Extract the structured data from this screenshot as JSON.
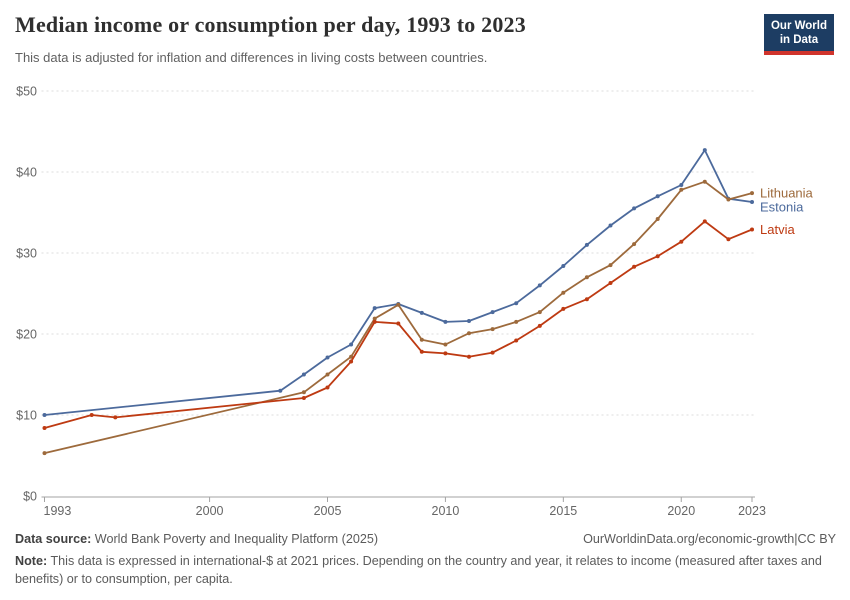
{
  "header": {
    "title": "Median income or consumption per day, 1993 to 2023",
    "subtitle": "This data is adjusted for inflation and differences in living costs between countries."
  },
  "logo": {
    "line1": "Our World",
    "line2": "in Data",
    "background_color": "#1d3d63",
    "accent_color": "#d0342c"
  },
  "chart_data": {
    "type": "line",
    "title": "Median income or consumption per day, 1993 to 2023",
    "xlabel": "",
    "ylabel": "",
    "xlim": [
      1993,
      2023
    ],
    "ylim": [
      0,
      50
    ],
    "grid": "horizontal-dashed",
    "legend_position": "end-of-line-labels",
    "x_ticks": [
      1993,
      2000,
      2005,
      2010,
      2015,
      2020,
      2023
    ],
    "x_tick_labels": [
      "1993",
      "2000",
      "2005",
      "2010",
      "2015",
      "2020",
      "2023"
    ],
    "y_ticks": [
      0,
      10,
      20,
      30,
      40,
      50
    ],
    "y_tick_labels": [
      "$0",
      "$10",
      "$20",
      "$30",
      "$40",
      "$50"
    ],
    "series": [
      {
        "name": "Estonia",
        "color": "#4C6A9C",
        "points": [
          [
            1993,
            10.0
          ],
          [
            2003,
            13.0
          ],
          [
            2004,
            15.0
          ],
          [
            2005,
            17.1
          ],
          [
            2006,
            18.7
          ],
          [
            2007,
            23.2
          ],
          [
            2008,
            23.7
          ],
          [
            2009,
            22.6
          ],
          [
            2010,
            21.5
          ],
          [
            2011,
            21.6
          ],
          [
            2012,
            22.7
          ],
          [
            2013,
            23.8
          ],
          [
            2014,
            26.0
          ],
          [
            2015,
            28.4
          ],
          [
            2016,
            31.0
          ],
          [
            2017,
            33.4
          ],
          [
            2018,
            35.5
          ],
          [
            2019,
            37.0
          ],
          [
            2020,
            38.4
          ],
          [
            2021,
            42.7
          ],
          [
            2022,
            36.7
          ],
          [
            2023,
            36.3
          ]
        ]
      },
      {
        "name": "Lithuania",
        "color": "#9D6A3C",
        "points": [
          [
            1993,
            5.3
          ],
          [
            2004,
            12.8
          ],
          [
            2005,
            15.0
          ],
          [
            2006,
            17.2
          ],
          [
            2007,
            21.9
          ],
          [
            2008,
            23.6
          ],
          [
            2009,
            19.3
          ],
          [
            2010,
            18.7
          ],
          [
            2011,
            20.1
          ],
          [
            2012,
            20.6
          ],
          [
            2013,
            21.5
          ],
          [
            2014,
            22.7
          ],
          [
            2015,
            25.1
          ],
          [
            2016,
            27.0
          ],
          [
            2017,
            28.5
          ],
          [
            2018,
            31.1
          ],
          [
            2019,
            34.2
          ],
          [
            2020,
            37.8
          ],
          [
            2021,
            38.8
          ],
          [
            2022,
            36.6
          ],
          [
            2023,
            37.4
          ]
        ]
      },
      {
        "name": "Latvia",
        "color": "#BE3A12",
        "points": [
          [
            1993,
            8.4
          ],
          [
            1995,
            10.0
          ],
          [
            1996,
            9.7
          ],
          [
            2004,
            12.1
          ],
          [
            2005,
            13.4
          ],
          [
            2006,
            16.6
          ],
          [
            2007,
            21.5
          ],
          [
            2008,
            21.3
          ],
          [
            2009,
            17.8
          ],
          [
            2010,
            17.6
          ],
          [
            2011,
            17.2
          ],
          [
            2012,
            17.7
          ],
          [
            2013,
            19.2
          ],
          [
            2014,
            21.0
          ],
          [
            2015,
            23.1
          ],
          [
            2016,
            24.3
          ],
          [
            2017,
            26.3
          ],
          [
            2018,
            28.3
          ],
          [
            2019,
            29.6
          ],
          [
            2020,
            31.4
          ],
          [
            2021,
            33.9
          ],
          [
            2022,
            31.7
          ],
          [
            2023,
            32.9
          ]
        ]
      }
    ]
  },
  "footer": {
    "source_label": "Data source:",
    "source_text": "World Bank Poverty and Inequality Platform (2025)",
    "attribution_link": "OurWorldinData.org/economic-growth",
    "separator": "|",
    "license": "CC BY",
    "note_label": "Note:",
    "note_text": "This data is expressed in international-$ at 2021 prices. Depending on the country and year, it relates to income (measured after taxes and benefits) or to consumption, per capita."
  }
}
